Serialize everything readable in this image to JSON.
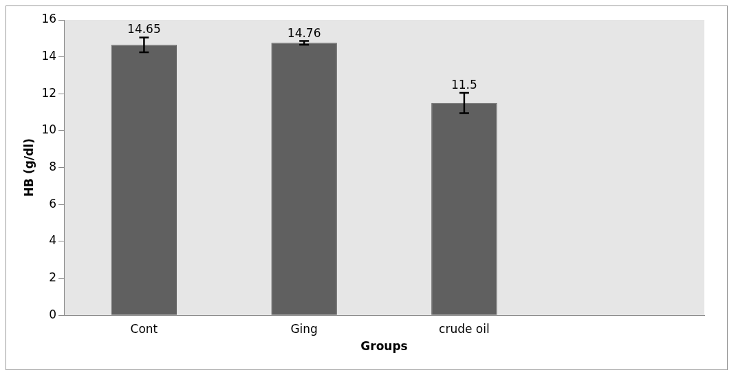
{
  "chart_data": {
    "type": "bar",
    "xlabel": "Groups",
    "ylabel": "HB (g/dl)",
    "categories": [
      "Cont",
      "Ging",
      "crude oil",
      null
    ],
    "values": [
      14.65,
      14.76,
      11.5,
      null
    ],
    "errors": [
      0.4,
      0.1,
      0.55,
      null
    ],
    "color": "#606060",
    "ylim": [
      0,
      16
    ],
    "yticks": [
      0,
      2,
      4,
      6,
      8,
      10,
      12,
      14,
      16
    ],
    "data_labels": true,
    "grid": false,
    "legend": false
  }
}
